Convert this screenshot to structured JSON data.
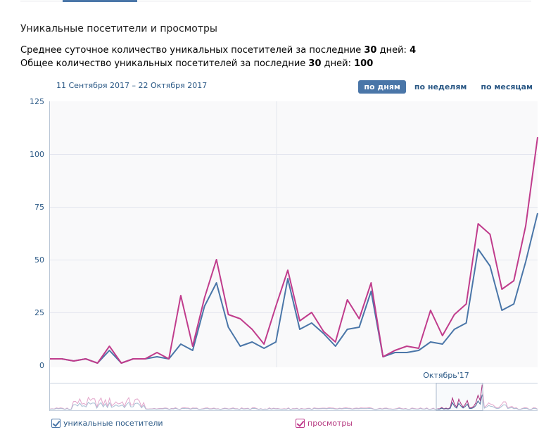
{
  "tabs": {
    "active_index": 1
  },
  "section": {
    "title": "Уникальные посетители и просмотры",
    "stat1_prefix": "Среднее суточное количество уникальных посетителей за последние ",
    "stat1_days": "30",
    "stat1_mid": " дней: ",
    "stat1_value": "4",
    "stat2_prefix": "Общее количество уникальных посетителей за последние ",
    "stat2_days": "30",
    "stat2_mid": " дней: ",
    "stat2_value": "100"
  },
  "date_range": "11 Сентября 2017 – 22 Октября 2017",
  "period_buttons": [
    {
      "label": "по дням",
      "active": true
    },
    {
      "label": "по неделям",
      "active": false
    },
    {
      "label": "по месяцам",
      "active": false
    }
  ],
  "navigator": {
    "label": "Октябрь'17"
  },
  "legend": {
    "visitors": "уникальные посетители",
    "views": "просмотры"
  },
  "colors": {
    "visitors": "#4a76a8",
    "views": "#c03c8c",
    "accent": "#4a76a8",
    "link": "#2a5885",
    "plot_bg": "#f9f9fa",
    "grid": "#e4e6ef"
  },
  "chart_data": {
    "type": "line",
    "title": "Уникальные посетители и просмотры",
    "xlabel": "",
    "ylabel": "",
    "ylim": [
      0,
      125
    ],
    "yticks": [
      0,
      25,
      50,
      75,
      100,
      125
    ],
    "grid": true,
    "legend_position": "bottom",
    "x_range": "11 Сентября 2017 – 22 Октября 2017",
    "x": [
      "11.09",
      "12.09",
      "13.09",
      "14.09",
      "15.09",
      "16.09",
      "17.09",
      "18.09",
      "19.09",
      "20.09",
      "21.09",
      "22.09",
      "23.09",
      "24.09",
      "25.09",
      "26.09",
      "27.09",
      "28.09",
      "29.09",
      "30.09",
      "01.10",
      "02.10",
      "03.10",
      "04.10",
      "05.10",
      "06.10",
      "07.10",
      "08.10",
      "09.10",
      "10.10",
      "11.10",
      "12.10",
      "13.10",
      "14.10",
      "15.10",
      "16.10",
      "17.10",
      "18.10",
      "19.10",
      "20.10",
      "21.10",
      "22.10"
    ],
    "series": [
      {
        "name": "уникальные посетители",
        "color": "#4a76a8",
        "values": [
          3,
          3,
          2,
          3,
          1,
          7,
          1,
          3,
          3,
          4,
          3,
          10,
          7,
          28,
          39,
          18,
          9,
          11,
          8,
          11,
          41,
          17,
          20,
          15,
          9,
          17,
          18,
          35,
          4,
          6,
          6,
          7,
          11,
          10,
          17,
          20,
          55,
          47,
          26,
          29,
          49,
          72
        ]
      },
      {
        "name": "просмотры",
        "color": "#c03c8c",
        "values": [
          3,
          3,
          2,
          3,
          1,
          9,
          1,
          3,
          3,
          6,
          3,
          33,
          9,
          32,
          50,
          24,
          22,
          17,
          10,
          28,
          45,
          21,
          25,
          16,
          11,
          31,
          22,
          39,
          4,
          7,
          9,
          8,
          26,
          14,
          24,
          29,
          67,
          62,
          36,
          40,
          66,
          108
        ]
      }
    ]
  }
}
